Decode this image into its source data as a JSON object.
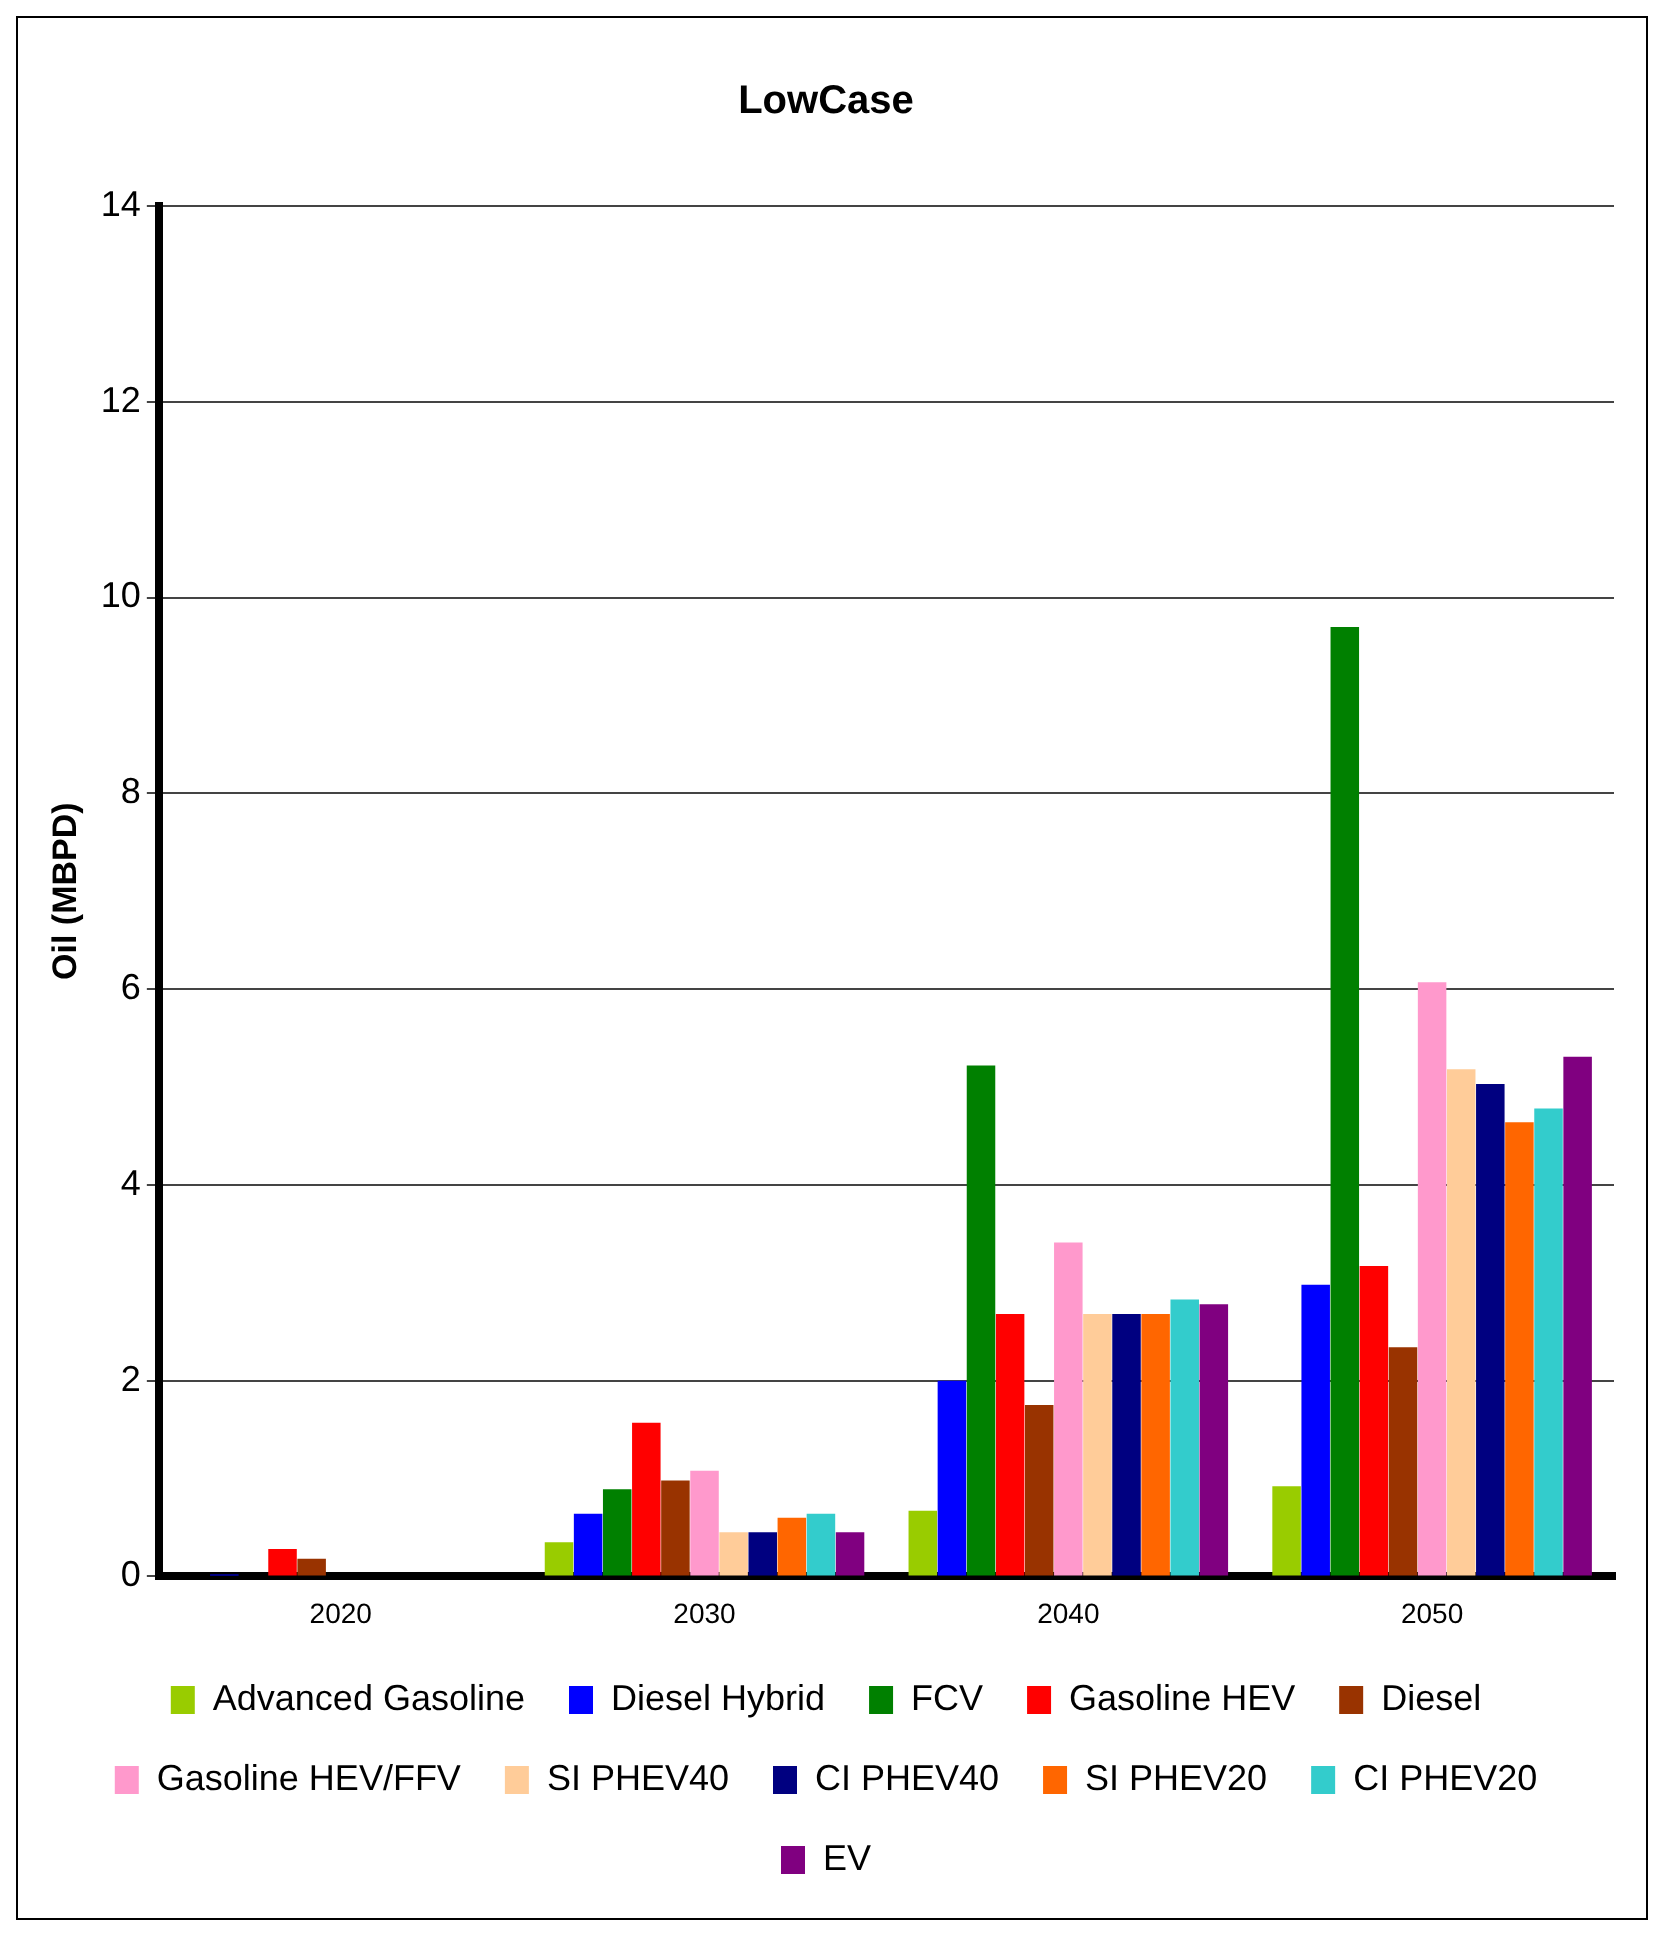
{
  "chart_data": {
    "type": "bar",
    "title": "LowCase",
    "ylabel": "Oil (MBPD)",
    "categories": [
      "2020",
      "2030",
      "2040",
      "2050"
    ],
    "ylim": [
      0,
      14
    ],
    "yticks": [
      0,
      2,
      4,
      6,
      8,
      10,
      12,
      14
    ],
    "grid": "y",
    "legend": "bottom",
    "series": [
      {
        "name": "Advanced Gasoline",
        "color": "#99cc00",
        "values": [
          0,
          0.35,
          0.67,
          0.92
        ]
      },
      {
        "name": "Diesel Hybrid",
        "color": "#0000ff",
        "values": [
          0.02,
          0.64,
          2.0,
          2.98
        ]
      },
      {
        "name": "FCV",
        "color": "#008000",
        "values": [
          0,
          0.89,
          5.22,
          9.7
        ]
      },
      {
        "name": "Gasoline HEV",
        "color": "#ff0000",
        "values": [
          0.28,
          1.57,
          2.68,
          3.17
        ]
      },
      {
        "name": "Diesel",
        "color": "#993300",
        "values": [
          0.18,
          0.98,
          1.75,
          2.34
        ]
      },
      {
        "name": "Gasoline HEV/FFV",
        "color": "#ff99cc",
        "values": [
          0,
          1.08,
          3.41,
          6.07
        ]
      },
      {
        "name": "SI PHEV40",
        "color": "#ffcc99",
        "values": [
          0,
          0.45,
          2.68,
          5.18
        ]
      },
      {
        "name": "CI PHEV40",
        "color": "#000080",
        "values": [
          0,
          0.45,
          2.68,
          5.03
        ]
      },
      {
        "name": "SI PHEV20",
        "color": "#ff6600",
        "values": [
          0,
          0.6,
          2.68,
          4.64
        ]
      },
      {
        "name": "CI PHEV20",
        "color": "#33cccc",
        "values": [
          0,
          0.64,
          2.83,
          4.78
        ]
      },
      {
        "name": "EV",
        "color": "#800080",
        "values": [
          0,
          0.45,
          2.78,
          5.31
        ]
      }
    ]
  }
}
